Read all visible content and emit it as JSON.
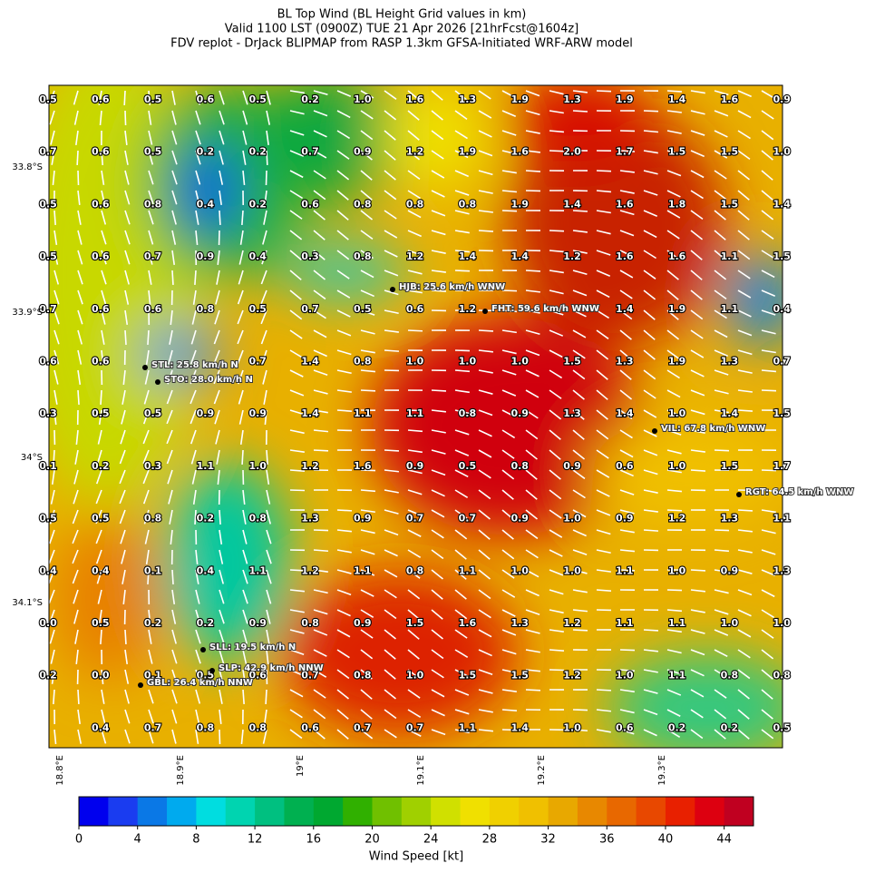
{
  "header": {
    "title_lines": [
      "BL Top Wind (BL Height Grid values in km)",
      "Valid 1100 LST (0900Z) TUE 21 Apr 2026 [21hrFcst@1604z]",
      "FDV replot - DrJack BLIPMAP from RASP 1.3km GFSA-Initiated WRF-ARW model"
    ]
  },
  "map": {
    "lat_labels": [
      "33.8°S",
      "33.9°S",
      "34°S",
      "34.1°S"
    ],
    "lon_labels": [
      "18.8°E",
      "18.9°E",
      "19°E",
      "19.1°E",
      "19.2°E",
      "19.3°E"
    ],
    "grid": {
      "rows": [
        [
          "0.5",
          "0.6",
          "0.5",
          "0.6",
          "0.5",
          "0.2",
          "1.0",
          "1.6",
          "1.3",
          "1.9",
          "1.3",
          "1.9",
          "1.4",
          "1.6",
          "0.9"
        ],
        [
          "0.7",
          "0.6",
          "0.5",
          "0.2",
          "0.2",
          "0.7",
          "0.9",
          "1.2",
          "1.9",
          "1.6",
          "2.0",
          "1.7",
          "1.5",
          "1.5",
          "1.0"
        ],
        [
          "0.5",
          "0.6",
          "0.8",
          "0.4",
          "0.2",
          "0.6",
          "0.8",
          "0.8",
          "0.8",
          "1.9",
          "1.4",
          "1.6",
          "1.8",
          "1.5",
          "1.4"
        ],
        [
          "0.5",
          "0.6",
          "0.7",
          "0.9",
          "0.4",
          "0.3",
          "0.8",
          "1.2",
          "1.4",
          "1.4",
          "1.2",
          "1.6",
          "1.6",
          "1.1",
          "1.5"
        ],
        [
          "0.7",
          "0.6",
          "0.6",
          "0.8",
          "0.5",
          "0.7",
          "0.5",
          "0.6",
          "1.2",
          null,
          null,
          "1.4",
          "1.9",
          "1.1",
          "0.4"
        ],
        [
          "0.6",
          "0.6",
          null,
          null,
          "0.7",
          "1.4",
          "0.8",
          "1.0",
          "1.0",
          "1.0",
          "1.5",
          "1.3",
          "1.9",
          "1.3",
          "0.7"
        ],
        [
          "0.3",
          "0.5",
          "0.5",
          "0.9",
          "0.9",
          "1.4",
          "1.1",
          "1.1",
          "0.8",
          "0.9",
          "1.3",
          "1.4",
          "1.0",
          "1.4",
          "1.5"
        ],
        [
          "0.1",
          "0.2",
          "0.3",
          "1.1",
          "1.0",
          "1.2",
          "1.6",
          "0.9",
          "0.5",
          "0.8",
          "0.9",
          "0.6",
          "1.0",
          "1.5",
          "1.7"
        ],
        [
          "0.5",
          "0.5",
          "0.8",
          "0.2",
          "0.8",
          "1.3",
          "0.9",
          "0.7",
          "0.7",
          "0.9",
          "1.0",
          "0.9",
          "1.2",
          "1.3",
          "1.1"
        ],
        [
          "0.4",
          "0.4",
          "0.1",
          "0.4",
          "1.1",
          "1.2",
          "1.1",
          "0.8",
          "1.1",
          "1.0",
          "1.0",
          "1.1",
          "1.0",
          "0.9",
          "1.3"
        ],
        [
          "0.0",
          "0.5",
          "0.2",
          "0.2",
          "0.9",
          "0.8",
          "0.9",
          "1.5",
          "1.6",
          "1.3",
          "1.2",
          "1.1",
          "1.1",
          "1.0",
          "1.0"
        ],
        [
          "0.2",
          "0.0",
          "0.1",
          "0.5",
          "0.6",
          "0.7",
          "0.8",
          "1.0",
          "1.5",
          "1.5",
          "1.2",
          "1.0",
          "1.1",
          "0.8",
          "0.8"
        ],
        [
          null,
          "0.4",
          "0.7",
          "0.8",
          "0.8",
          "0.6",
          "0.7",
          "0.7",
          "1.1",
          "1.4",
          "1.0",
          "0.6",
          "0.2",
          "0.2",
          "0.5"
        ]
      ]
    },
    "stations": [
      {
        "label": "HJB: 25.6 km/h WNW"
      },
      {
        "label": "FHT: 59.6 km/h WNW"
      },
      {
        "label": "STL: 25.8 km/h N"
      },
      {
        "label": "STO: 28.0 km/h N"
      },
      {
        "label": "VIL: 67.8 km/h WNW"
      },
      {
        "label": "RGT: 64.5 km/h WNW"
      },
      {
        "label": "SLL: 19.5 km/h N"
      },
      {
        "label": "SLP: 42.9 km/h NNW"
      },
      {
        "label": "GBL: 26.4 km/h NNW"
      }
    ]
  },
  "colorbar": {
    "label": "Wind Speed [kt]",
    "range": [
      0,
      46
    ],
    "ticks": [
      0,
      4,
      8,
      12,
      16,
      20,
      24,
      28,
      32,
      36,
      40,
      44
    ],
    "colors": [
      "#0000ee",
      "#1a3cf0",
      "#0a78e6",
      "#00aaee",
      "#00dde0",
      "#00d4b0",
      "#00c080",
      "#00b050",
      "#00a830",
      "#30b000",
      "#70c000",
      "#a0d000",
      "#d0e000",
      "#f0e000",
      "#f0d000",
      "#f0c000",
      "#e8a800",
      "#e88800",
      "#e86800",
      "#e84800",
      "#e82000",
      "#dd0010",
      "#c00020"
    ]
  }
}
